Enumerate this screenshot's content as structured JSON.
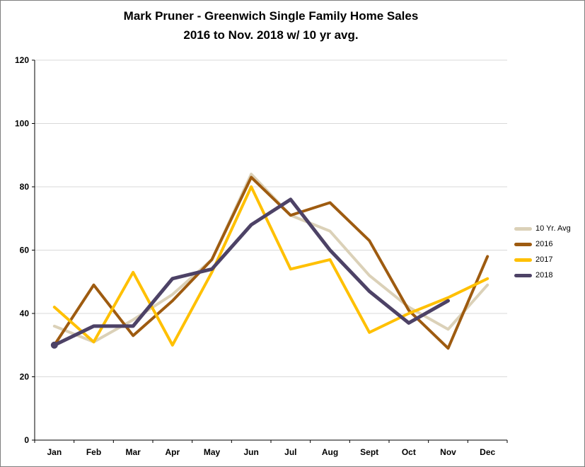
{
  "window": {
    "background": "#FFFFFF",
    "border_color": "#7F7F7F"
  },
  "title": {
    "line1": "Mark Pruner - Greenwich Single Family Home Sales",
    "line2": "2016 to Nov. 2018 w/ 10 yr avg."
  },
  "chart_data": {
    "type": "line",
    "title": "Mark Pruner - Greenwich Single Family Home Sales 2016 to Nov. 2018 w/ 10 yr avg.",
    "categories": [
      "Jan",
      "Feb",
      "Mar",
      "Apr",
      "May",
      "Jun",
      "Jul",
      "Aug",
      "Sept",
      "Oct",
      "Nov",
      "Dec"
    ],
    "y_ticks": [
      0,
      20,
      40,
      60,
      80,
      100,
      120
    ],
    "ylim": [
      0,
      120
    ],
    "grid": true,
    "legend_position": "right",
    "gridline_color": "#D9D9D9",
    "axis_color": "#000000",
    "series": [
      {
        "name": "10 Yr. Avg",
        "color": "#DBD1B8",
        "line_width": 4,
        "values": [
          36,
          31,
          38,
          46,
          57,
          84,
          71,
          66,
          52,
          42,
          35,
          49
        ]
      },
      {
        "name": "2016",
        "color": "#9E5B10",
        "line_width": 4,
        "values": [
          30,
          49,
          33,
          44,
          57,
          83,
          71,
          75,
          63,
          41,
          29,
          58
        ]
      },
      {
        "name": "2017",
        "color": "#FFC000",
        "line_width": 4,
        "values": [
          42,
          31,
          53,
          30,
          53,
          80,
          54,
          57,
          34,
          40,
          45,
          51
        ]
      },
      {
        "name": "2018",
        "color": "#4D4266",
        "line_width": 5,
        "start_marker": true,
        "values": [
          30,
          36,
          36,
          51,
          54,
          68,
          76,
          60,
          47,
          37,
          44,
          null
        ]
      }
    ]
  }
}
